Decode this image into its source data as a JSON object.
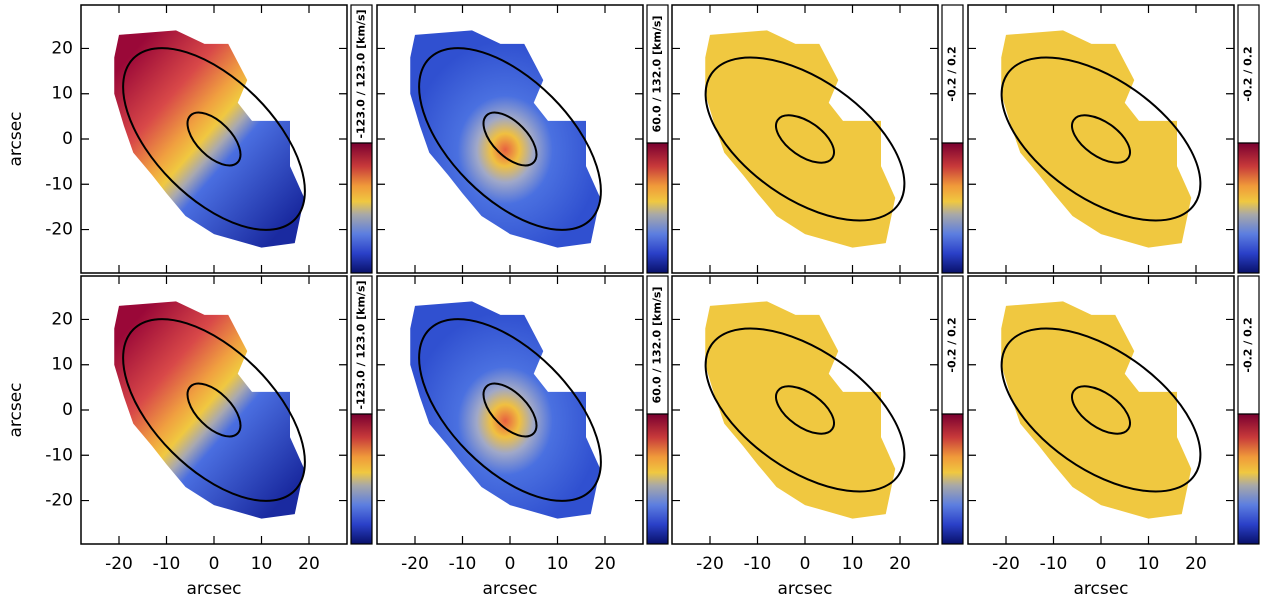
{
  "chart_data": [
    {
      "type": "map",
      "colorbar_label": "-123.0 / 123.0 [km/s]",
      "ylabel": "arcsec",
      "xlim": [
        -28,
        28
      ],
      "ylim": [
        -29.6,
        29.6
      ],
      "xticks": [
        -20,
        -10,
        0,
        10,
        20
      ],
      "yticks": [
        -20,
        -10,
        0,
        10,
        20
      ]
    },
    {
      "type": "map",
      "colorbar_label": "60.0 / 132.0 [km/s]",
      "xlim": [
        -28,
        28
      ],
      "ylim": [
        -29.6,
        29.6
      ],
      "xticks": [
        -20,
        -10,
        0,
        10,
        20
      ],
      "yticks": [
        -20,
        -10,
        0,
        10,
        20
      ]
    },
    {
      "type": "map",
      "colorbar_label": "-0.2 / 0.2",
      "xlim": [
        -28,
        28
      ],
      "ylim": [
        -29.6,
        29.6
      ],
      "xticks": [
        -20,
        -10,
        0,
        10,
        20
      ],
      "yticks": [
        -20,
        -10,
        0,
        10,
        20
      ]
    },
    {
      "type": "map",
      "colorbar_label": "-0.2 / 0.2",
      "xlim": [
        -28,
        28
      ],
      "ylim": [
        -29.6,
        29.6
      ],
      "xticks": [
        -20,
        -10,
        0,
        10,
        20
      ],
      "yticks": [
        -20,
        -10,
        0,
        10,
        20
      ]
    },
    {
      "type": "map",
      "colorbar_label": "-123.0 / 123.0 [km/s]",
      "ylabel": "arcsec",
      "xlabel": "arcsec",
      "xlim": [
        -28,
        28
      ],
      "ylim": [
        -29.6,
        29.6
      ],
      "xticks": [
        -20,
        -10,
        0,
        10,
        20
      ],
      "yticks": [
        -20,
        -10,
        0,
        10,
        20
      ]
    },
    {
      "type": "map",
      "colorbar_label": "60.0 / 132.0 [km/s]",
      "xlabel": "arcsec",
      "xlim": [
        -28,
        28
      ],
      "ylim": [
        -29.6,
        29.6
      ],
      "xticks": [
        -20,
        -10,
        0,
        10,
        20
      ],
      "yticks": [
        -20,
        -10,
        0,
        10,
        20
      ]
    },
    {
      "type": "map",
      "colorbar_label": "-0.2 / 0.2",
      "xlabel": "arcsec",
      "xlim": [
        -28,
        28
      ],
      "ylim": [
        -29.6,
        29.6
      ],
      "xticks": [
        -20,
        -10,
        0,
        10,
        20
      ],
      "yticks": [
        -20,
        -10,
        0,
        10,
        20
      ]
    },
    {
      "type": "map",
      "colorbar_label": "-0.2 / 0.2",
      "xlabel": "arcsec",
      "xlim": [
        -28,
        28
      ],
      "ylim": [
        -29.6,
        29.6
      ],
      "xticks": [
        -20,
        -10,
        0,
        10,
        20
      ],
      "yticks": [
        -20,
        -10,
        0,
        10,
        20
      ]
    }
  ]
}
